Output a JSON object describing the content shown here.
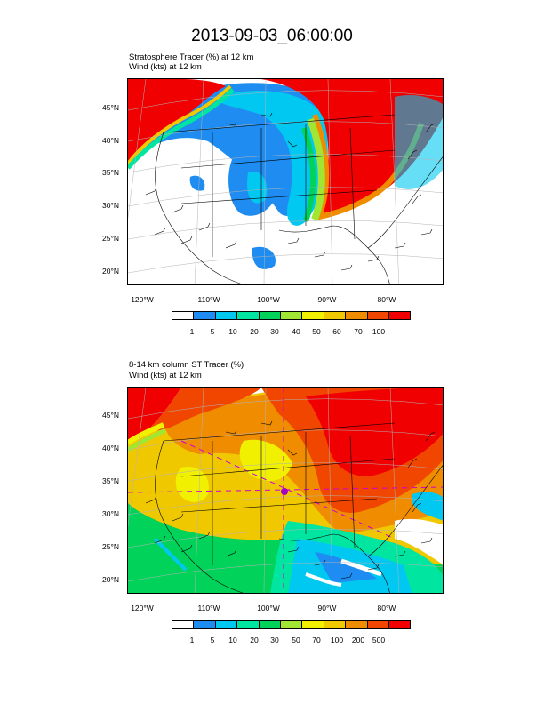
{
  "title": "2013-09-03_06:00:00",
  "panel1": {
    "line1": "Stratosphere Tracer   (%)     at   12 km",
    "line2": "Wind    (kts)     at   12 km",
    "colorbar_labels": [
      "1",
      "5",
      "10",
      "20",
      "30",
      "40",
      "50",
      "60",
      "70",
      "100"
    ]
  },
  "panel2": {
    "line1": "8-14 km column ST Tracer   (%)",
    "line2": "Wind    (kts)     at   12 km",
    "colorbar_labels": [
      "1",
      "5",
      "10",
      "20",
      "30",
      "50",
      "70",
      "100",
      "200",
      "500"
    ]
  },
  "lat_labels": [
    "45°N",
    "40°N",
    "35°N",
    "30°N",
    "25°N",
    "20°N"
  ],
  "lon_labels": [
    "120°W",
    "110°W",
    "100°W",
    "90°W",
    "80°W"
  ],
  "colorbar_colors": [
    "#ffffff",
    "#1e8cf0",
    "#00c8f0",
    "#00e6a0",
    "#00d25a",
    "#a0e632",
    "#f0f000",
    "#f0c800",
    "#f08c00",
    "#f04600",
    "#f00000"
  ]
}
